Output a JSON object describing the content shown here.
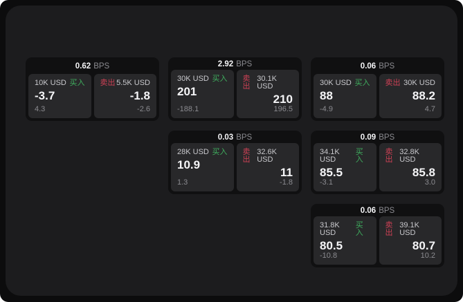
{
  "page": {
    "bps_suffix": "BPS",
    "buy_label": "买入",
    "sell_label": "卖出",
    "colors": {
      "outer_bg": "#0c0c0d",
      "panel_bg": "#1c1c1e",
      "card_bg": "#101011",
      "tile_bg": "#28282a",
      "text_primary": "#f5f5f7",
      "text_secondary": "#8b8b90",
      "text_label": "#c9c9cd",
      "buy_green": "#3fae5e",
      "sell_red": "#cd4155"
    }
  },
  "cards": [
    {
      "bps": "0.62",
      "col": 1,
      "row": 1,
      "buy": {
        "size": "10K USD",
        "value": "-3.7",
        "delta": "4.3"
      },
      "sell": {
        "size": "5.5K USD",
        "value": "-1.8",
        "delta": "-2.6"
      }
    },
    {
      "bps": "2.92",
      "col": 2,
      "row": 1,
      "buy": {
        "size": "30K USD",
        "value": "201",
        "delta": "-188.1"
      },
      "sell": {
        "size": "30.1K USD",
        "value": "210",
        "delta": "196.5"
      }
    },
    {
      "bps": "0.06",
      "col": 3,
      "row": 1,
      "buy": {
        "size": "30K USD",
        "value": "88",
        "delta": "-4.9"
      },
      "sell": {
        "size": "30K USD",
        "value": "88.2",
        "delta": "4.7"
      }
    },
    {
      "bps": "0.03",
      "col": 2,
      "row": 2,
      "buy": {
        "size": "28K USD",
        "value": "10.9",
        "delta": "1.3"
      },
      "sell": {
        "size": "32.6K USD",
        "value": "11",
        "delta": "-1.8"
      }
    },
    {
      "bps": "0.09",
      "col": 3,
      "row": 2,
      "buy": {
        "size": "34.1K USD",
        "value": "85.5",
        "delta": "-3.1"
      },
      "sell": {
        "size": "32.8K USD",
        "value": "85.8",
        "delta": "3.0"
      }
    },
    {
      "bps": "0.06",
      "col": 3,
      "row": 3,
      "buy": {
        "size": "31.8K USD",
        "value": "80.5",
        "delta": "-10.8"
      },
      "sell": {
        "size": "39.1K USD",
        "value": "80.7",
        "delta": "10.2"
      }
    }
  ]
}
